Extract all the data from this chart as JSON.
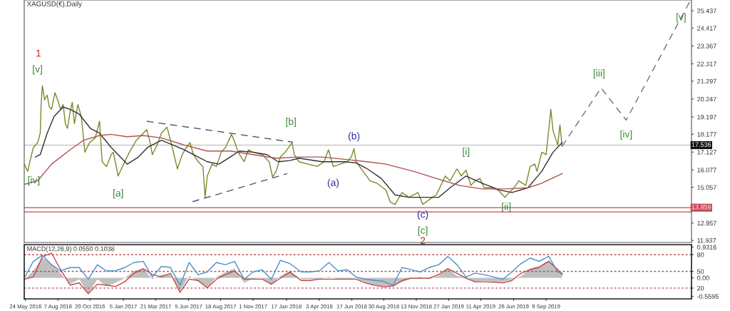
{
  "chart_data": [
    {
      "type": "line",
      "title": "XAGUSD(€),Daily",
      "xlim": [
        "2016-05-21",
        "2020-08-10"
      ],
      "ylim": [
        11.81,
        26.07
      ],
      "yticks": [
        25.437,
        24.417,
        23.367,
        22.317,
        21.297,
        20.247,
        19.197,
        18.177,
        17.127,
        16.077,
        15.057,
        12.957,
        11.937
      ],
      "tick_labels": "y",
      "x": [
        "2016-05-21",
        "2016-05-29",
        "2016-06-03",
        "2016-06-11",
        "2016-06-21",
        "2016-06-27",
        "2016-06-29",
        "2016-07-02",
        "2016-07-07",
        "2016-07-13",
        "2016-07-18",
        "2016-07-23",
        "2016-07-31",
        "2016-08-08",
        "2016-08-13",
        "2016-08-19",
        "2016-08-24",
        "2016-08-29",
        "2016-09-04",
        "2016-09-09",
        "2016-09-14",
        "2016-09-22",
        "2016-09-30",
        "2016-10-08",
        "2016-10-19",
        "2016-11-01",
        "2016-11-11",
        "2016-11-17",
        "2016-11-27",
        "2016-12-08",
        "2016-12-13",
        "2016-12-24",
        "2017-01-03",
        "2017-01-19",
        "2017-02-04",
        "2017-02-15",
        "2017-02-28",
        "2017-03-08",
        "2017-03-13",
        "2017-03-24",
        "2017-04-03",
        "2017-04-16",
        "2017-04-24",
        "2017-05-10",
        "2017-05-21",
        "2017-05-31",
        "2017-06-08",
        "2017-06-16",
        "2017-06-27",
        "2017-07-08",
        "2017-07-13",
        "2017-07-18",
        "2017-07-29",
        "2017-08-08",
        "2017-08-19",
        "2017-08-29",
        "2017-09-12",
        "2017-09-20",
        "2017-09-27",
        "2017-10-11",
        "2017-10-21",
        "2017-11-01",
        "2017-11-22",
        "2017-12-08",
        "2017-12-16",
        "2017-12-24",
        "2018-01-03",
        "2018-01-14",
        "2018-01-30",
        "2018-02-04",
        "2018-02-15",
        "2018-03-08",
        "2018-03-29",
        "2018-04-14",
        "2018-04-24",
        "2018-05-05",
        "2018-05-21",
        "2018-06-06",
        "2018-06-16",
        "2018-06-22",
        "2018-06-27",
        "2018-07-13",
        "2018-07-29",
        "2018-08-14",
        "2018-09-04",
        "2018-09-14",
        "2018-09-25",
        "2018-10-11",
        "2018-10-27",
        "2018-11-17",
        "2018-11-28",
        "2018-12-13",
        "2018-12-29",
        "2019-01-09",
        "2019-01-19",
        "2019-01-30",
        "2019-02-15",
        "2019-02-25",
        "2019-03-08",
        "2019-03-19",
        "2019-03-29",
        "2019-04-09",
        "2019-04-19",
        "2019-05-05",
        "2019-05-21",
        "2019-06-06",
        "2019-06-16",
        "2019-06-27",
        "2019-07-08",
        "2019-07-24",
        "2019-08-03",
        "2019-08-14",
        "2019-08-19",
        "2019-08-30",
        "2019-09-09",
        "2019-09-20",
        "2019-09-25",
        "2019-10-06",
        "2019-10-11",
        "2019-10-16"
      ],
      "series": [
        {
          "color": "#7a8a2e",
          "values": [
            16.42,
            16.0,
            16.56,
            17.4,
            17.68,
            18.24,
            19.92,
            21.03,
            20.2,
            20.48,
            19.78,
            19.64,
            20.62,
            20.06,
            19.64,
            19.92,
            18.8,
            18.52,
            19.5,
            20.06,
            18.8,
            19.92,
            19.22,
            17.12,
            17.68,
            17.96,
            18.94,
            16.56,
            16.28,
            16.98,
            17.12,
            15.72,
            16.28,
            17.12,
            17.82,
            18.1,
            18.45,
            17.68,
            16.98,
            17.54,
            18.24,
            18.59,
            17.82,
            16.14,
            16.98,
            17.4,
            17.68,
            16.98,
            16.56,
            16.28,
            14.47,
            15.72,
            16.42,
            16.28,
            17.12,
            17.4,
            18.17,
            17.68,
            17.12,
            16.56,
            17.26,
            17.12,
            16.98,
            16.56,
            15.65,
            16.0,
            16.84,
            17.12,
            17.68,
            16.98,
            16.56,
            16.42,
            16.28,
            16.56,
            17.26,
            16.28,
            16.42,
            16.56,
            16.84,
            17.33,
            16.56,
            16.0,
            15.44,
            15.3,
            14.89,
            14.19,
            14.05,
            14.75,
            14.47,
            14.75,
            14.05,
            14.33,
            14.61,
            15.17,
            15.72,
            15.44,
            16.14,
            15.72,
            16.07,
            15.17,
            15.44,
            15.58,
            15.03,
            15.03,
            14.89,
            14.47,
            14.75,
            15.03,
            15.44,
            15.17,
            16.28,
            16.42,
            16.0,
            17.12,
            16.98,
            19.64,
            18.38,
            17.54,
            18.73,
            17.47
          ]
        },
        {
          "color": "#303030",
          "x": [
            "2016-06-16",
            "2016-06-27",
            "2016-07-13",
            "2016-07-29",
            "2016-08-19",
            "2016-09-04",
            "2016-09-25",
            "2016-10-21",
            "2016-11-11",
            "2016-12-08",
            "2016-12-29",
            "2017-01-14",
            "2017-02-09",
            "2017-03-02",
            "2017-04-03",
            "2017-04-30",
            "2017-05-26",
            "2017-06-27",
            "2017-07-18",
            "2017-08-14",
            "2017-09-09",
            "2017-09-30",
            "2017-11-01",
            "2017-12-03",
            "2017-12-29",
            "2018-01-24",
            "2018-02-15",
            "2018-04-09",
            "2018-06-01",
            "2018-06-27",
            "2018-07-23",
            "2018-08-24",
            "2018-09-25",
            "2018-10-27",
            "2018-11-28",
            "2019-01-04",
            "2019-01-30",
            "2019-03-08",
            "2019-04-14",
            "2019-05-26",
            "2019-06-22",
            "2019-07-29",
            "2019-08-30",
            "2019-09-25",
            "2019-10-16"
          ],
          "values": [
            16.84,
            16.98,
            18.24,
            19.22,
            19.78,
            19.64,
            19.36,
            18.52,
            18.24,
            17.4,
            16.84,
            16.42,
            16.84,
            17.4,
            17.82,
            17.54,
            17.26,
            16.84,
            16.56,
            16.42,
            16.84,
            17.19,
            17.12,
            16.98,
            16.56,
            16.63,
            16.77,
            16.56,
            16.56,
            16.49,
            16.14,
            15.58,
            14.61,
            14.47,
            14.47,
            14.47,
            15.03,
            15.72,
            15.3,
            14.89,
            14.75,
            15.03,
            16.0,
            17.12,
            17.68
          ]
        },
        {
          "color": "#b05050",
          "x": [
            "2016-05-21",
            "2016-06-21",
            "2016-07-23",
            "2016-09-04",
            "2016-10-05",
            "2016-11-11",
            "2016-12-08",
            "2017-01-14",
            "2017-02-20",
            "2017-04-03",
            "2017-05-26",
            "2017-07-18",
            "2017-09-09",
            "2017-11-01",
            "2017-12-24",
            "2018-02-15",
            "2018-04-09",
            "2018-06-01",
            "2018-07-23",
            "2018-09-04",
            "2018-11-06",
            "2018-12-29",
            "2019-02-20",
            "2019-04-14",
            "2019-06-06",
            "2019-07-29",
            "2019-08-30",
            "2019-10-16"
          ],
          "values": [
            15.23,
            15.44,
            16.42,
            17.26,
            17.82,
            18.1,
            18.17,
            18.03,
            18.1,
            17.96,
            17.54,
            17.19,
            17.19,
            16.98,
            16.77,
            16.84,
            16.84,
            16.7,
            16.56,
            16.42,
            16.0,
            15.58,
            15.17,
            14.96,
            14.96,
            15.03,
            15.3,
            15.86
          ]
        },
        {
          "color": "#4a5575",
          "line_style": "dashed",
          "x": [
            "2017-02-28",
            "2018-02-01"
          ],
          "values": [
            18.94,
            17.71
          ]
        },
        {
          "color": "#4a5575",
          "line_style": "dashed",
          "x": [
            "2017-06-14",
            "2018-01-19"
          ],
          "values": [
            14.21,
            15.86
          ]
        },
        {
          "color": "#707080",
          "line_style": "dashed",
          "x": [
            "2019-10-16",
            "2020-01-14",
            "2020-03-12",
            "2020-08-08"
          ],
          "values": [
            17.47,
            20.9,
            19.01,
            26.07
          ]
        }
      ],
      "ref_lines": [
        {
          "axis": "y",
          "value": 17.536,
          "label": "17.536",
          "color": "#c8c8c8"
        },
        {
          "axis": "y",
          "value": 13.859,
          "label": "13.859",
          "color": "#c84858"
        },
        {
          "axis": "y",
          "value": 13.61,
          "color": "#c84858"
        }
      ],
      "annotations": [
        {
          "text": "1",
          "x": "2016-07-02",
          "y": 21.03
        },
        {
          "text": "[v]",
          "x": "2016-07-02",
          "y": 21.03
        },
        {
          "text": "[iv]",
          "x": "2016-06-12",
          "y": 15.44
        },
        {
          "text": "[a]",
          "x": "2016-12-24",
          "y": 15.72
        },
        {
          "text": "[b]",
          "x": "2018-02-01",
          "y": 17.71
        },
        {
          "text": "(a)",
          "x": "2018-05-05",
          "y": 16.28
        },
        {
          "text": "(b)",
          "x": "2018-06-22",
          "y": 17.33
        },
        {
          "text": "(c)",
          "x": "2018-11-28",
          "y": 13.42
        },
        {
          "text": "[c]",
          "x": "2018-11-28",
          "y": 14.05
        },
        "2",
        {
          "text": "[i]",
          "x": "2019-03-08",
          "y": 16.07
        },
        {
          "text": "[ii]",
          "x": "2019-06-09",
          "y": 13.88
        },
        {
          "text": "[iii]",
          "x": "2020-01-14",
          "y": 20.9
        },
        {
          "text": "[iv]",
          "x": "2020-03-12",
          "y": 19.01
        },
        {
          "text": "[v]",
          "x": "2020-07-17",
          "y": 25.02
        }
      ]
    },
    {
      "type": "line",
      "xlim": [
        "2016-05-21",
        "2020-08-10"
      ],
      "ylim": [
        -0.635,
        1.004
      ],
      "y2lim": [
        0.7,
        98.0
      ],
      "yticks": [
        0.9316,
        {
          "value": 0,
          "label": "0.00"
        },
        -0.5595
      ],
      "y2ticks": [
        80,
        50,
        20
      ],
      "xticks": [
        {
          "value": "2016-05-24",
          "label": "24 May 2016"
        },
        {
          "value": "2016-08-07",
          "label": "7 Aug 2016"
        },
        {
          "value": "2016-10-20",
          "label": "20 Oct 2016"
        },
        {
          "value": "2017-01-05",
          "label": "5 Jan 2017"
        },
        {
          "value": "2017-03-21",
          "label": "21 Mar 2017"
        },
        {
          "value": "2017-06-05",
          "label": "5 Jun 2017"
        },
        {
          "value": "2017-08-18",
          "label": "18 Aug 2017"
        },
        {
          "value": "2017-11-01",
          "label": "1 Nov 2017"
        },
        {
          "value": "2018-01-17",
          "label": "17 Jan 2018"
        },
        {
          "value": "2018-04-03",
          "label": "3 Apr 2018"
        },
        {
          "value": "2018-06-17",
          "label": "17 Jun 2018"
        },
        {
          "value": "2018-08-30",
          "label": "30 Aug 2018"
        },
        {
          "value": "2018-11-13",
          "label": "13 Nov 2018"
        },
        {
          "value": "2019-01-27",
          "label": "27 Jan 2019"
        },
        {
          "value": "2019-04-11",
          "label": "11 Apr 2019"
        },
        {
          "value": "2019-06-26",
          "label": "26 Jun 2019"
        },
        {
          "value": "2019-09-09",
          "label": "9 Sep 2019"
        }
      ],
      "x": [
        "2016-05-21",
        "2016-06-11",
        "2016-07-02",
        "2016-07-23",
        "2016-08-13",
        "2016-09-04",
        "2016-09-25",
        "2016-10-16",
        "2016-11-06",
        "2016-11-27",
        "2016-12-18",
        "2017-01-08",
        "2017-01-30",
        "2017-02-20",
        "2017-03-13",
        "2017-04-03",
        "2017-04-24",
        "2017-05-16",
        "2017-06-06",
        "2017-06-27",
        "2017-07-18",
        "2017-08-08",
        "2017-08-29",
        "2017-09-19",
        "2017-10-11",
        "2017-11-01",
        "2017-11-22",
        "2017-12-13",
        "2018-01-03",
        "2018-01-25",
        "2018-02-20",
        "2018-03-13",
        "2018-04-03",
        "2018-04-25",
        "2018-05-16",
        "2018-06-06",
        "2018-06-27",
        "2018-07-18",
        "2018-08-08",
        "2018-08-30",
        "2018-09-20",
        "2018-10-11",
        "2018-11-01",
        "2018-11-22",
        "2018-12-13",
        "2019-01-04",
        "2019-01-25",
        "2019-02-15",
        "2019-03-08",
        "2019-03-29",
        "2019-04-19",
        "2019-05-11",
        "2019-06-01",
        "2019-06-22",
        "2019-07-13",
        "2019-08-03",
        "2019-08-24",
        "2019-09-15",
        "2019-10-06",
        "2019-10-16"
      ],
      "series": [
        {
          "type": "area",
          "color": "#c0c0c0",
          "values": [
            -0.04,
            0.21,
            0.61,
            0.43,
            0.14,
            -0.19,
            -0.04,
            -0.48,
            -0.04,
            -0.26,
            -0.15,
            -0.01,
            0.21,
            0.28,
            -0.04,
            0.1,
            0.1,
            -0.4,
            0.06,
            -0.12,
            -0.3,
            0.03,
            0.17,
            0.28,
            -0.15,
            -0.03,
            -0.01,
            -0.22,
            0.06,
            0.21,
            -0.04,
            -0.04,
            -0.04,
            0.03,
            -0.04,
            -0.04,
            -0.01,
            -0.12,
            -0.2,
            -0.26,
            -0.26,
            -0.13,
            -0.01,
            0.03,
            -0.03,
            0.06,
            0.28,
            0.06,
            0.03,
            -0.12,
            -0.09,
            -0.12,
            -0.12,
            -0.04,
            0.05,
            0.28,
            0.35,
            0.53,
            0.25,
            0.1
          ]
        },
        {
          "color": "#c04848",
          "values": [
            -0.04,
            0.03,
            0.64,
            0.75,
            0.25,
            -0.22,
            -0.15,
            -0.48,
            -0.19,
            -0.22,
            -0.26,
            -0.12,
            0.14,
            0.28,
            0.1,
            0.03,
            0.14,
            -0.44,
            -0.04,
            -0.08,
            -0.3,
            -0.04,
            0.1,
            0.21,
            -0.04,
            -0.04,
            -0.04,
            -0.19,
            -0.01,
            0.17,
            -0.08,
            -0.08,
            -0.04,
            -0.04,
            -0.04,
            -0.04,
            -0.04,
            -0.15,
            -0.22,
            -0.27,
            -0.25,
            -0.08,
            -0.01,
            -0.01,
            -0.01,
            0.1,
            0.28,
            0.14,
            -0.01,
            -0.12,
            -0.12,
            -0.13,
            -0.15,
            -0.08,
            0.14,
            0.25,
            0.32,
            0.5,
            0.25,
            0.1
          ]
        },
        {
          "color": "#4a90c8",
          "axis": "y2",
          "values": [
            38,
            68,
            79,
            62,
            51,
            57,
            57,
            36,
            62,
            51,
            51,
            57,
            66,
            68,
            40,
            59,
            57,
            25,
            66,
            44,
            49,
            66,
            62,
            68,
            36,
            49,
            53,
            36,
            70,
            64,
            49,
            49,
            51,
            66,
            51,
            53,
            40,
            36,
            34,
            32,
            25,
            57,
            53,
            49,
            57,
            62,
            77,
            62,
            40,
            47,
            44,
            40,
            36,
            49,
            64,
            74,
            68,
            77,
            49,
            47
          ]
        }
      ],
      "ref_lines": [
        {
          "axis": "y2",
          "value": 80,
          "color": "#c04848",
          "line_style": "dotted"
        },
        {
          "axis": "y2",
          "value": 50,
          "color": "#c04848",
          "line_style": "dotted"
        },
        {
          "axis": "y2",
          "value": 20,
          "color": "#c04848",
          "line_style": "dotted"
        }
      ],
      "annotations": [
        "MACD(12,26,9) 0.0550 0.1038"
      ]
    }
  ]
}
